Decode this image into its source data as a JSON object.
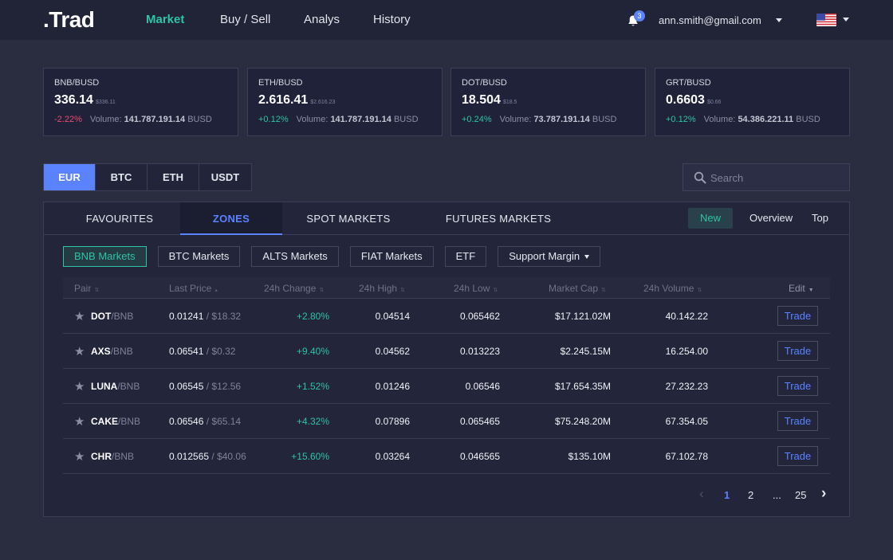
{
  "header": {
    "logo": ".Trad",
    "nav": [
      {
        "label": "Market",
        "active": true
      },
      {
        "label": "Buy / Sell",
        "active": false
      },
      {
        "label": "Analys",
        "active": false
      },
      {
        "label": "History",
        "active": false
      }
    ],
    "notification_count": "3",
    "user_email": "ann.smith@gmail.com",
    "language_flag": "us-flag-icon"
  },
  "tickers": [
    {
      "pair": "BNB/BUSD",
      "price": "336.14",
      "price_sub": "$336.11",
      "change": "-2.22%",
      "direction": "neg",
      "volume_label": "Volume:",
      "volume": "141.787.191.14",
      "volume_unit": "BUSD"
    },
    {
      "pair": "ETH/BUSD",
      "price": "2.616.41",
      "price_sub": "$2.616.23",
      "change": "+0.12%",
      "direction": "pos",
      "volume_label": "Volume:",
      "volume": "141.787.191.14",
      "volume_unit": "BUSD"
    },
    {
      "pair": "DOT/BUSD",
      "price": "18.504",
      "price_sub": "$18.5",
      "change": "+0.24%",
      "direction": "pos",
      "volume_label": "Volume:",
      "volume": "73.787.191.14",
      "volume_unit": "BUSD"
    },
    {
      "pair": "GRT/BUSD",
      "price": "0.6603",
      "price_sub": "$0.66",
      "change": "+0.12%",
      "direction": "pos",
      "volume_label": "Volume:",
      "volume": "54.386.221.11",
      "volume_unit": "BUSD"
    }
  ],
  "currency_tabs": [
    {
      "label": "EUR",
      "active": true
    },
    {
      "label": "BTC",
      "active": false
    },
    {
      "label": "ETH",
      "active": false
    },
    {
      "label": "USDT",
      "active": false
    }
  ],
  "search": {
    "placeholder": "Search",
    "value": ""
  },
  "market_tabs": [
    {
      "label": "FAVOURITES",
      "active": false
    },
    {
      "label": "ZONES",
      "active": true
    },
    {
      "label": "SPOT MARKETS",
      "active": false
    },
    {
      "label": "FUTURES MARKETS",
      "active": false
    }
  ],
  "market_tabs_right": {
    "new": "New",
    "overview": "Overview",
    "top": "Top"
  },
  "filters": [
    {
      "label": "BNB Markets",
      "active": true
    },
    {
      "label": "BTC Markets",
      "active": false
    },
    {
      "label": "ALTS Markets",
      "active": false
    },
    {
      "label": "FIAT Markets",
      "active": false
    },
    {
      "label": "ETF",
      "active": false
    },
    {
      "label": "Support Margin",
      "active": false,
      "dropdown": true
    }
  ],
  "table": {
    "columns": [
      "Pair",
      "Last Price",
      "24h Change",
      "24h High",
      "24h Low",
      "Market Cap",
      "24h Volume",
      "Edit"
    ],
    "rows": [
      {
        "coin": "DOT",
        "quote": "/BNB",
        "last": "0.01241",
        "last_usd": " / $18.32",
        "change": "+2.80%",
        "high": "0.04514",
        "low": "0.065462",
        "cap": "$17.121.02M",
        "volume": "40.142.22",
        "action": "Trade"
      },
      {
        "coin": "AXS",
        "quote": "/BNB",
        "last": "0.06541",
        "last_usd": " / $0.32",
        "change": "+9.40%",
        "high": "0.04562",
        "low": "0.013223",
        "cap": "$2.245.15M",
        "volume": "16.254.00",
        "action": "Trade"
      },
      {
        "coin": "LUNA",
        "quote": "/BNB",
        "last": "0.06545",
        "last_usd": " / $12.56",
        "change": "+1.52%",
        "high": "0.01246",
        "low": "0.06546",
        "cap": "$17.654.35M",
        "volume": "27.232.23",
        "action": "Trade"
      },
      {
        "coin": "CAKE",
        "quote": "/BNB",
        "last": "0.06546",
        "last_usd": " / $65.14",
        "change": "+4.32%",
        "high": "0.07896",
        "low": "0.065465",
        "cap": "$75.248.20M",
        "volume": "67.354.05",
        "action": "Trade"
      },
      {
        "coin": "CHR",
        "quote": "/BNB",
        "last": "0.012565",
        "last_usd": " / $40.06",
        "change": "+15.60%",
        "high": "0.03264",
        "low": "0.046565",
        "cap": "$135.10M",
        "volume": "67.102.78",
        "action": "Trade"
      }
    ]
  },
  "pagination": {
    "prev": "‹",
    "pages": [
      "1",
      "2",
      "...",
      "25"
    ],
    "current": "1",
    "next": "›"
  },
  "colors": {
    "accent_blue": "#5b82ff",
    "accent_green": "#2ec4a5",
    "negative": "#ea4d6d",
    "background": "#2a2c40",
    "header": "#212336"
  }
}
